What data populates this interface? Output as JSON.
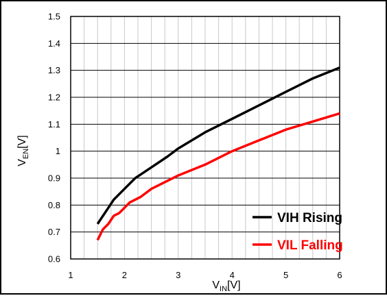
{
  "chart_data": {
    "type": "line",
    "xlabel": {
      "base": "V",
      "sub": "IN",
      "unit": "[V]"
    },
    "ylabel": {
      "base": "V",
      "sub": "EN",
      "unit": "[V]"
    },
    "xlim": [
      1,
      6
    ],
    "ylim": [
      0.6,
      1.5
    ],
    "x_ticks": [
      "1",
      "2",
      "3",
      "4",
      "5",
      "6"
    ],
    "y_ticks": [
      "0.6",
      "0.7",
      "0.8",
      "0.9",
      "1",
      "1.1",
      "1.2",
      "1.3",
      "1.4",
      "1.5"
    ],
    "x_minor_step": 0.25,
    "y_step": 0.1,
    "grid": true,
    "legend_position": "bottom-right",
    "series": [
      {
        "name": "VIH Rising",
        "color": "#000000",
        "x": [
          1.5,
          1.6,
          1.7,
          1.8,
          2.0,
          2.2,
          2.5,
          2.8,
          3.0,
          3.5,
          4.0,
          4.5,
          5.0,
          5.5,
          6.0
        ],
        "y": [
          0.73,
          0.76,
          0.79,
          0.82,
          0.86,
          0.9,
          0.94,
          0.98,
          1.01,
          1.07,
          1.12,
          1.17,
          1.22,
          1.27,
          1.31
        ]
      },
      {
        "name": "VIL Falling",
        "color": "#ff0000",
        "x": [
          1.5,
          1.55,
          1.6,
          1.7,
          1.8,
          1.9,
          2.0,
          2.1,
          2.3,
          2.5,
          3.0,
          3.5,
          4.0,
          4.5,
          5.0,
          5.5,
          6.0
        ],
        "y": [
          0.67,
          0.69,
          0.71,
          0.73,
          0.76,
          0.77,
          0.79,
          0.81,
          0.83,
          0.86,
          0.91,
          0.95,
          1.0,
          1.04,
          1.08,
          1.11,
          1.14
        ]
      }
    ]
  }
}
